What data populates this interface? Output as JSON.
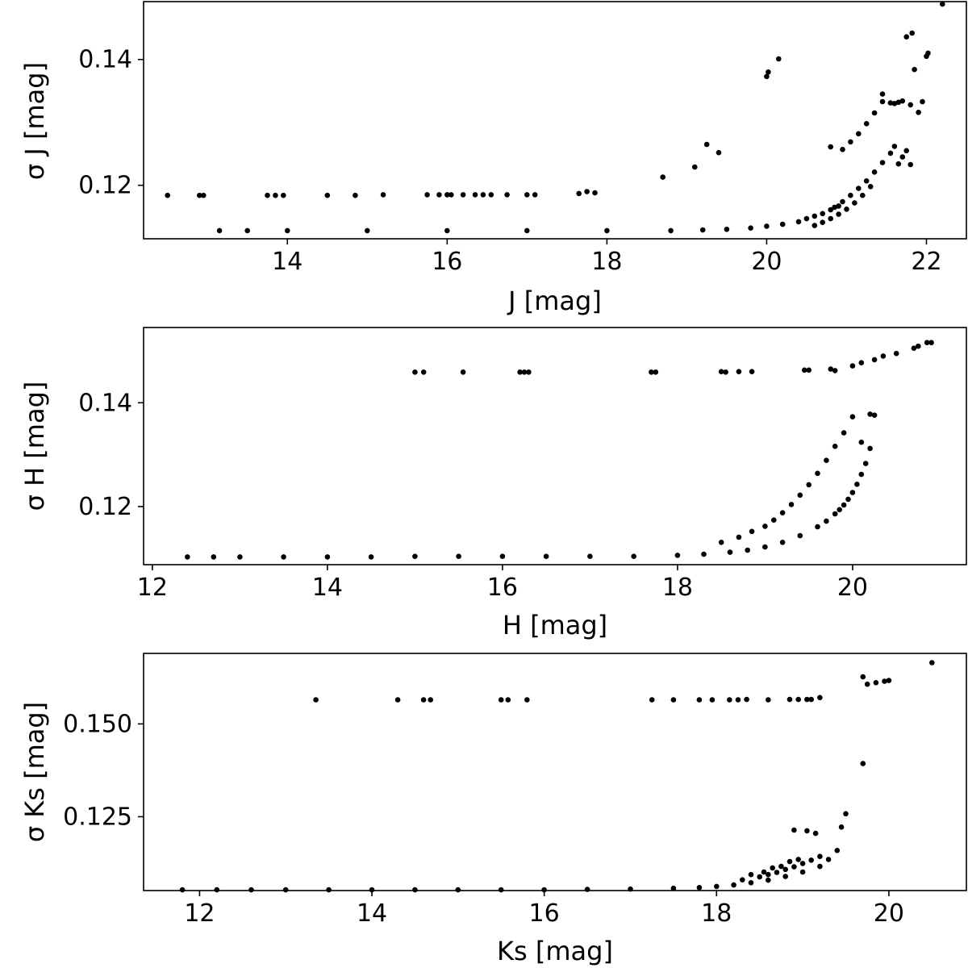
{
  "chart_data": [
    {
      "type": "scatter",
      "xlabel": "J [mag]",
      "ylabel": "σ J [mag]",
      "xlim": [
        12.2,
        22.5
      ],
      "ylim": [
        0.1115,
        0.1492
      ],
      "xticks": [
        14,
        16,
        18,
        20,
        22
      ],
      "xtick_labels": [
        "14",
        "16",
        "18",
        "20",
        "22"
      ],
      "yticks": [
        0.12,
        0.14
      ],
      "ytick_labels": [
        "0.12",
        "0.14"
      ],
      "grid": false,
      "color": "#000000",
      "x": [
        12.5,
        12.9,
        12.95,
        13.75,
        13.85,
        13.95,
        14.5,
        14.85,
        15.2,
        15.75,
        15.9,
        16.0,
        16.05,
        16.2,
        16.35,
        16.45,
        16.55,
        16.75,
        17.0,
        17.1,
        17.65,
        17.75,
        17.85,
        18.7,
        19.1,
        19.25,
        19.4,
        20.0,
        20.02,
        20.15,
        13.15,
        13.5,
        14.0,
        15.0,
        16.0,
        17.0,
        18.0,
        18.8,
        19.2,
        19.5,
        19.8,
        20.0,
        20.2,
        20.4,
        20.5,
        20.6,
        20.7,
        20.8,
        20.9,
        20.6,
        20.7,
        20.8,
        20.9,
        21.0,
        21.1,
        21.2,
        21.3,
        20.85,
        20.95,
        21.05,
        21.15,
        21.25,
        21.35,
        21.45,
        21.55,
        21.6,
        21.65,
        21.7,
        21.75,
        21.8,
        20.8,
        20.95,
        21.05,
        21.15,
        21.25,
        21.35,
        21.45,
        21.55,
        21.65,
        21.45,
        21.6,
        21.7,
        21.8,
        21.75,
        21.82,
        21.85,
        21.9,
        21.95,
        22.0,
        22.02,
        22.2
      ],
      "y": [
        0.1184,
        0.1184,
        0.1184,
        0.1184,
        0.1184,
        0.1184,
        0.1184,
        0.1184,
        0.1185,
        0.1185,
        0.1185,
        0.1185,
        0.1185,
        0.1185,
        0.1185,
        0.1185,
        0.1185,
        0.1185,
        0.1185,
        0.1185,
        0.1187,
        0.119,
        0.1188,
        0.1213,
        0.1229,
        0.1265,
        0.1252,
        0.1373,
        0.138,
        0.1401,
        0.1128,
        0.1128,
        0.1128,
        0.1128,
        0.1128,
        0.1128,
        0.1128,
        0.1128,
        0.1129,
        0.113,
        0.1132,
        0.1135,
        0.1138,
        0.1142,
        0.1147,
        0.1151,
        0.1155,
        0.1161,
        0.1167,
        0.1136,
        0.1141,
        0.1147,
        0.1154,
        0.1162,
        0.1172,
        0.1184,
        0.1198,
        0.1165,
        0.1174,
        0.1184,
        0.1195,
        0.1207,
        0.1221,
        0.1236,
        0.1251,
        0.1262,
        0.1234,
        0.1245,
        0.1255,
        0.1233,
        0.1261,
        0.1257,
        0.1269,
        0.1282,
        0.1298,
        0.1315,
        0.1333,
        0.1331,
        0.1332,
        0.1345,
        0.133,
        0.1334,
        0.1328,
        0.1436,
        0.1442,
        0.1384,
        0.1316,
        0.1333,
        0.1405,
        0.141,
        0.1488
      ]
    },
    {
      "type": "scatter",
      "xlabel": "H [mag]",
      "ylabel": "σ H [mag]",
      "xlim": [
        11.9,
        21.3
      ],
      "ylim": [
        0.1088,
        0.1545
      ],
      "xticks": [
        12,
        14,
        16,
        18,
        20
      ],
      "xtick_labels": [
        "12",
        "14",
        "16",
        "18",
        "20"
      ],
      "yticks": [
        0.12,
        0.14
      ],
      "ytick_labels": [
        "0.12",
        "0.14"
      ],
      "grid": false,
      "color": "#000000",
      "x": [
        15.0,
        15.1,
        15.55,
        16.2,
        16.25,
        16.3,
        17.7,
        17.75,
        18.5,
        18.55,
        18.7,
        18.85,
        19.45,
        19.5,
        19.75,
        19.8,
        20.0,
        20.1,
        20.25,
        20.35,
        20.5,
        20.7,
        20.75,
        20.85,
        20.9,
        12.4,
        12.7,
        13.0,
        13.5,
        14.0,
        14.5,
        15.0,
        15.5,
        16.0,
        16.5,
        17.0,
        17.5,
        18.0,
        18.3,
        18.6,
        18.8,
        19.0,
        19.2,
        19.4,
        19.6,
        19.7,
        19.8,
        19.85,
        19.9,
        19.95,
        20.0,
        20.05,
        20.1,
        20.15,
        20.2,
        20.25,
        18.5,
        18.7,
        18.85,
        19.0,
        19.1,
        19.2,
        19.3,
        19.4,
        19.5,
        19.6,
        19.7,
        19.8,
        19.9,
        20.0,
        20.1,
        20.2
      ],
      "y": [
        0.1459,
        0.1459,
        0.1459,
        0.1459,
        0.1459,
        0.1459,
        0.1459,
        0.1459,
        0.146,
        0.1459,
        0.146,
        0.146,
        0.1463,
        0.1463,
        0.1465,
        0.1462,
        0.1471,
        0.1477,
        0.1483,
        0.149,
        0.1495,
        0.1505,
        0.1509,
        0.1516,
        0.1516,
        0.1103,
        0.1103,
        0.1103,
        0.1103,
        0.1103,
        0.1103,
        0.1104,
        0.1104,
        0.1104,
        0.1104,
        0.1104,
        0.1104,
        0.1106,
        0.1108,
        0.1112,
        0.1116,
        0.1122,
        0.1131,
        0.1144,
        0.1161,
        0.1172,
        0.1186,
        0.1194,
        0.1203,
        0.1214,
        0.1227,
        0.1243,
        0.1262,
        0.1283,
        0.1312,
        0.1376,
        0.1131,
        0.1141,
        0.1152,
        0.1162,
        0.1174,
        0.1188,
        0.1204,
        0.1222,
        0.1242,
        0.1264,
        0.1289,
        0.1316,
        0.1342,
        0.1373,
        0.1324,
        0.1378
      ]
    },
    {
      "type": "scatter",
      "xlabel": "Ks [mag]",
      "ylabel": "σ Ks [mag]",
      "xlim": [
        11.35,
        20.9
      ],
      "ylim": [
        0.1051,
        0.169
      ],
      "xticks": [
        12,
        14,
        16,
        18,
        20
      ],
      "xtick_labels": [
        "12",
        "14",
        "16",
        "18",
        "20"
      ],
      "yticks": [
        0.125,
        0.15
      ],
      "ytick_labels": [
        "0.125",
        "0.150"
      ],
      "grid": false,
      "color": "#000000",
      "x": [
        13.35,
        14.3,
        14.6,
        14.68,
        15.5,
        15.58,
        15.8,
        17.25,
        17.5,
        17.8,
        17.95,
        18.15,
        18.25,
        18.35,
        18.6,
        18.85,
        18.95,
        19.05,
        19.1,
        19.2,
        19.7,
        19.75,
        19.85,
        19.95,
        20.0,
        20.5,
        11.8,
        12.2,
        12.6,
        13.0,
        13.5,
        14.0,
        14.5,
        15.0,
        15.5,
        16.0,
        16.5,
        17.0,
        17.5,
        17.8,
        18.0,
        18.2,
        18.4,
        18.6,
        18.8,
        19.0,
        19.2,
        19.3,
        19.4,
        19.45,
        19.5,
        19.7,
        18.3,
        18.5,
        18.6,
        18.7,
        18.8,
        18.9,
        19.0,
        19.1,
        19.2,
        18.9,
        19.05,
        19.15,
        18.4,
        18.55,
        18.65,
        18.75,
        18.85,
        18.95
      ],
      "y": [
        0.1565,
        0.1565,
        0.1565,
        0.1565,
        0.1565,
        0.1565,
        0.1565,
        0.1565,
        0.1565,
        0.1565,
        0.1565,
        0.1565,
        0.1565,
        0.1566,
        0.1565,
        0.1566,
        0.1566,
        0.1566,
        0.1566,
        0.1571,
        0.1627,
        0.1607,
        0.1611,
        0.1615,
        0.1617,
        0.1665,
        0.1053,
        0.1053,
        0.1053,
        0.1053,
        0.1053,
        0.1053,
        0.1053,
        0.1053,
        0.1053,
        0.1053,
        0.1054,
        0.1055,
        0.1057,
        0.1059,
        0.1062,
        0.1066,
        0.1072,
        0.1079,
        0.1089,
        0.1101,
        0.1116,
        0.1135,
        0.1159,
        0.1222,
        0.1258,
        0.1393,
        0.108,
        0.1088,
        0.1094,
        0.11,
        0.1108,
        0.1115,
        0.1124,
        0.1133,
        0.1143,
        0.1214,
        0.1212,
        0.1205,
        0.1094,
        0.1101,
        0.1112,
        0.1116,
        0.1129,
        0.1135
      ]
    }
  ]
}
